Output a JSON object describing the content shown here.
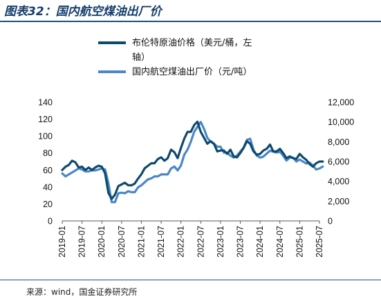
{
  "header": {
    "title": "图表32：国内航空煤油出厂价"
  },
  "footer": {
    "source": "来源：wind，国金证券研究所"
  },
  "chart_data": {
    "type": "line",
    "x_ticks": [
      "2019-01",
      "2019-07",
      "2020-01",
      "2020-07",
      "2021-01",
      "2021-07",
      "2022-01",
      "2022-07",
      "2023-01",
      "2023-07",
      "2024-01",
      "2024-07",
      "2025-01",
      "2025-07"
    ],
    "y_left": {
      "min": 0,
      "max": 140,
      "ticks": [
        "0",
        "20",
        "40",
        "60",
        "80",
        "100",
        "120",
        "140"
      ]
    },
    "y_right": {
      "min": 0,
      "max": 12000,
      "ticks": [
        "0",
        "2,000",
        "4,000",
        "6,000",
        "8,000",
        "10,000",
        "12,000"
      ]
    },
    "legend": {
      "items": [
        {
          "lines": [
            "布伦特原油价格（美元/桶，左",
            "轴）"
          ]
        },
        {
          "lines": [
            "国内航空煤油出厂价（元/吨）"
          ]
        }
      ]
    },
    "series": [
      {
        "name": "布伦特原油价格（美元/桶，左轴）",
        "axis": "left",
        "color": "#0e4a6b",
        "start": "2019-01",
        "values": [
          60,
          64,
          66,
          71,
          69,
          63,
          64,
          60,
          63,
          60,
          63,
          65,
          64,
          56,
          33,
          26,
          31,
          41,
          43,
          45,
          42,
          42,
          44,
          50,
          55,
          62,
          65,
          68,
          68,
          73,
          75,
          71,
          74,
          84,
          81,
          74,
          86,
          97,
          105,
          105,
          113,
          117,
          105,
          98,
          91,
          94,
          91,
          82,
          83,
          83,
          79,
          84,
          76,
          75,
          80,
          86,
          94,
          91,
          82,
          78,
          79,
          83,
          85,
          90,
          82,
          82,
          85,
          80,
          74,
          76,
          74,
          73,
          79,
          75,
          72,
          67,
          64,
          68,
          70,
          70
        ]
      },
      {
        "name": "国内航空煤油出厂价（元/吨）",
        "axis": "right",
        "color": "#4a86c8",
        "start": "2019-01",
        "values": [
          4800,
          4500,
          4700,
          4900,
          5100,
          5300,
          5200,
          5000,
          5000,
          5100,
          5100,
          5200,
          5300,
          5200,
          3800,
          1900,
          1900,
          2800,
          2850,
          2800,
          3000,
          2900,
          2900,
          3400,
          3600,
          3900,
          4200,
          4300,
          4500,
          4500,
          4700,
          4700,
          4700,
          5300,
          5500,
          5100,
          5600,
          6700,
          7200,
          8000,
          9000,
          9500,
          10000,
          9300,
          8400,
          8000,
          7800,
          7500,
          7500,
          6900,
          6900,
          6600,
          6400,
          6600,
          7000,
          7400,
          8200,
          8300,
          7200,
          6600,
          6400,
          6500,
          6800,
          7100,
          7000,
          6900,
          7000,
          6600,
          6100,
          6400,
          6400,
          6000,
          6200,
          6000,
          5800,
          5900,
          5600,
          5200,
          5300,
          5500
        ]
      }
    ]
  }
}
